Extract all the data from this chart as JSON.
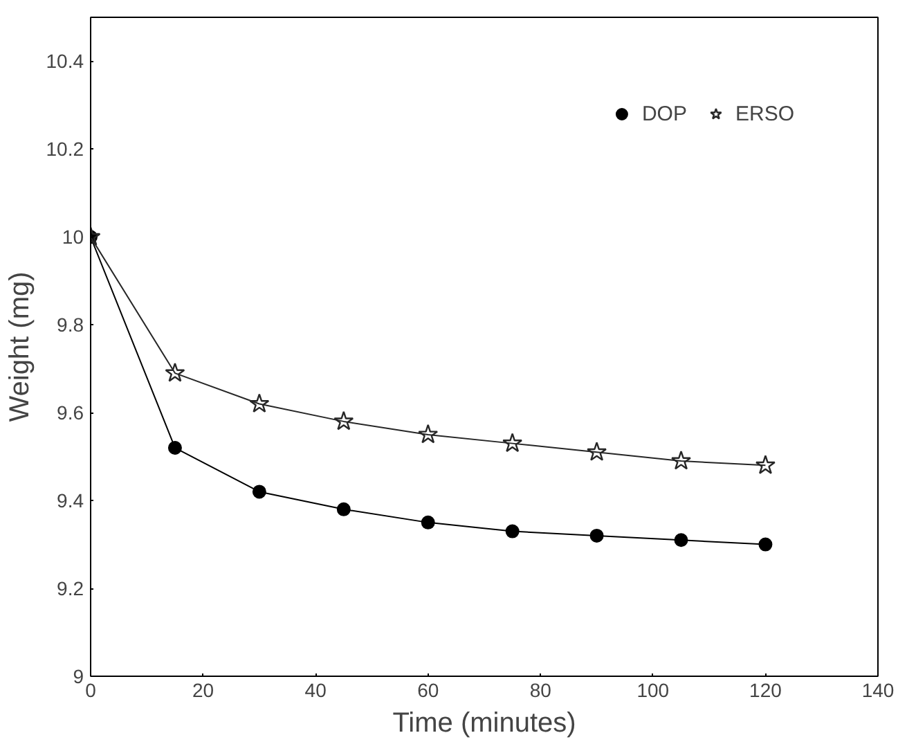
{
  "chart_data": {
    "type": "line",
    "xlabel": "Time (minutes)",
    "ylabel": "Weight (mg)",
    "x": [
      0,
      15,
      30,
      45,
      60,
      75,
      90,
      105,
      120
    ],
    "series": [
      {
        "name": "DOP",
        "color": "#000000",
        "marker": "circle",
        "values": [
          10,
          9.52,
          9.42,
          9.38,
          9.35,
          9.33,
          9.32,
          9.31,
          9.3
        ]
      },
      {
        "name": "ERSO",
        "color": "#262626",
        "marker": "star",
        "values": [
          10,
          9.69,
          9.62,
          9.58,
          9.55,
          9.53,
          9.51,
          9.49,
          9.48
        ]
      }
    ],
    "xlim": [
      0,
      140
    ],
    "xticks": [
      0,
      20,
      40,
      60,
      80,
      100,
      120,
      140
    ],
    "ylim": [
      9,
      10.5
    ],
    "yticks": [
      9,
      9.2,
      9.4,
      9.6,
      9.8,
      10,
      10.2,
      10.4
    ],
    "grid": false,
    "legend": "top right",
    "line_style": "solid"
  }
}
